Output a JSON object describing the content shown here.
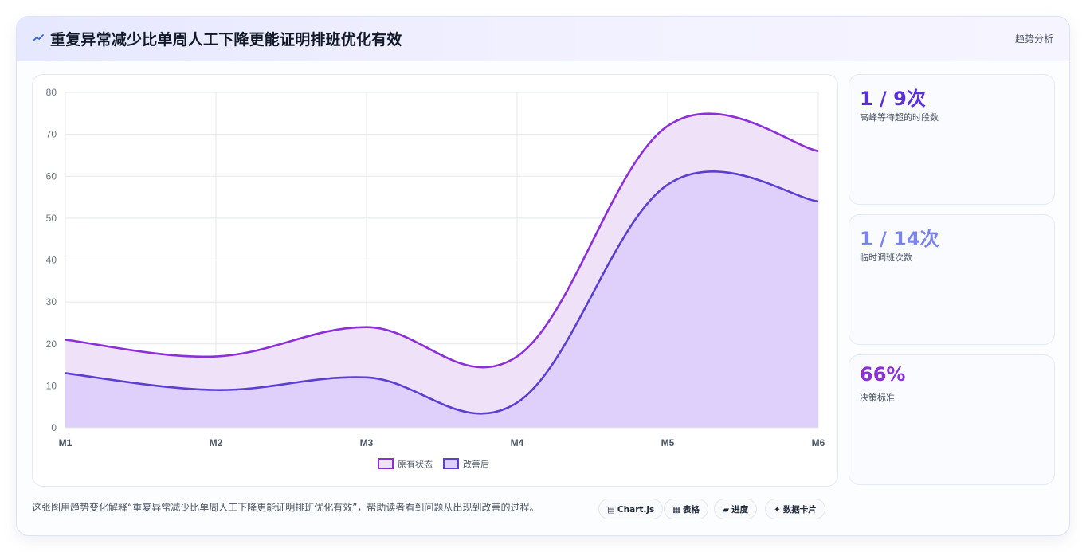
{
  "header": {
    "icon": "trend-icon",
    "title": "重复异常减少比单周人工下降更能证明排班优化有效",
    "right_label": "趋势分析"
  },
  "chart_data": {
    "type": "area",
    "x": [
      "M1",
      "M2",
      "M3",
      "M4",
      "M5",
      "M6"
    ],
    "ylim": [
      0,
      80
    ],
    "yticks": [
      0,
      10,
      20,
      30,
      40,
      50,
      60,
      70,
      80
    ],
    "grid": true,
    "legend_position": "bottom",
    "series": [
      {
        "name": "原有状态",
        "values": [
          21,
          17,
          24,
          17,
          72,
          66
        ],
        "color": "#8b2fd9",
        "fill": "#efe1f8"
      },
      {
        "name": "改善后",
        "values": [
          13,
          9,
          12,
          6,
          58,
          54
        ],
        "color": "#5a3fd1",
        "fill": "#dccffa"
      }
    ]
  },
  "stats": [
    {
      "value": "1 / 9次",
      "label": "高峰等待超的时段数",
      "color": "#5b2fd6"
    },
    {
      "value": "1 / 14次",
      "label": "临时调班次数",
      "color": "#7c84ec"
    },
    {
      "value": "66%",
      "label": "决策标准",
      "color": "#8b2fd9"
    }
  ],
  "footer": {
    "description": "这张图用趋势变化解释“重复异常减少比单周人工下降更能证明排班优化有效”，帮助读者看到问题从出现到改善的过程。",
    "tags": [
      {
        "icon": "chart-icon",
        "glyph": "▤",
        "label": "Chart.js"
      },
      {
        "icon": "table-icon",
        "glyph": "▦",
        "label": "表格"
      },
      {
        "icon": "progress-icon",
        "glyph": "▰",
        "label": "进度"
      },
      {
        "icon": "sparkle-icon",
        "glyph": "✦",
        "label": "数据卡片"
      }
    ]
  }
}
